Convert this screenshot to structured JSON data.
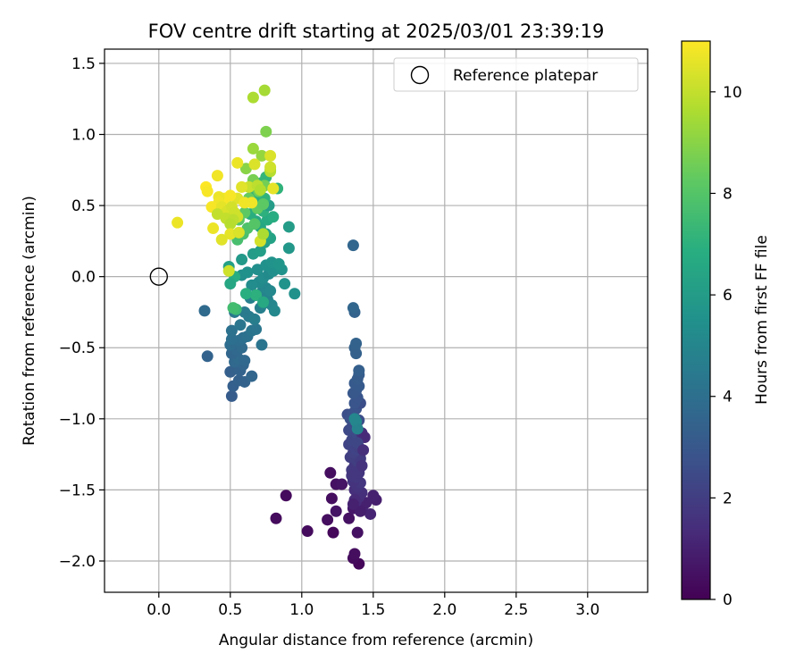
{
  "chart_data": {
    "type": "scatter",
    "title": "FOV centre drift starting at 2025/03/01 23:39:19",
    "xlabel": "Angular distance from reference (arcmin)",
    "ylabel": "Rotation from reference (arcmin)",
    "xlim": [
      -0.38,
      3.42
    ],
    "ylim": [
      -2.22,
      1.6
    ],
    "xticks": [
      0.0,
      0.5,
      1.0,
      1.5,
      2.0,
      2.5,
      3.0
    ],
    "xtick_labels": [
      "0.0",
      "0.5",
      "1.0",
      "1.5",
      "2.0",
      "2.5",
      "3.0"
    ],
    "yticks": [
      -2.0,
      -1.5,
      -1.0,
      -0.5,
      0.0,
      0.5,
      1.0,
      1.5
    ],
    "ytick_labels": [
      "−2.0",
      "−1.5",
      "−1.0",
      "−0.5",
      "0.0",
      "0.5",
      "1.0",
      "1.5"
    ],
    "grid": true,
    "legend": {
      "position": "top-right",
      "entries": [
        {
          "label": "Reference platepar",
          "marker": "open-circle"
        }
      ]
    },
    "reference_point": {
      "x": 0.0,
      "y": 0.0
    },
    "colorbar": {
      "label": "Hours from first FF file",
      "min": 0,
      "max": 11,
      "ticks": [
        0,
        2,
        4,
        6,
        8,
        10
      ],
      "colormap": "viridis"
    },
    "points": [
      {
        "x": 1.4,
        "y": -2.02,
        "t": 0.2
      },
      {
        "x": 1.36,
        "y": -1.98,
        "t": 0.3
      },
      {
        "x": 1.37,
        "y": -1.95,
        "t": 0.4
      },
      {
        "x": 1.39,
        "y": -1.8,
        "t": 0.5
      },
      {
        "x": 1.22,
        "y": -1.8,
        "t": 0.2
      },
      {
        "x": 1.04,
        "y": -1.79,
        "t": 0.3
      },
      {
        "x": 1.18,
        "y": -1.71,
        "t": 0.4
      },
      {
        "x": 0.82,
        "y": -1.7,
        "t": 0.3
      },
      {
        "x": 1.33,
        "y": -1.7,
        "t": 0.5
      },
      {
        "x": 1.24,
        "y": -1.65,
        "t": 0.6
      },
      {
        "x": 1.36,
        "y": -1.63,
        "t": 0.7
      },
      {
        "x": 1.21,
        "y": -1.56,
        "t": 0.4
      },
      {
        "x": 0.89,
        "y": -1.54,
        "t": 0.3
      },
      {
        "x": 1.24,
        "y": -1.46,
        "t": 0.5
      },
      {
        "x": 1.28,
        "y": -1.46,
        "t": 0.6
      },
      {
        "x": 1.2,
        "y": -1.38,
        "t": 0.4
      },
      {
        "x": 1.52,
        "y": -1.57,
        "t": 0.9
      },
      {
        "x": 1.5,
        "y": -1.54,
        "t": 1.0
      },
      {
        "x": 1.48,
        "y": -1.67,
        "t": 1.1
      },
      {
        "x": 1.43,
        "y": -1.61,
        "t": 1.2
      },
      {
        "x": 1.45,
        "y": -1.59,
        "t": 1.0
      },
      {
        "x": 1.41,
        "y": -1.65,
        "t": 0.9
      },
      {
        "x": 1.38,
        "y": -1.58,
        "t": 1.3
      },
      {
        "x": 1.4,
        "y": -1.55,
        "t": 1.4
      },
      {
        "x": 1.42,
        "y": -1.52,
        "t": 1.5
      },
      {
        "x": 1.37,
        "y": -1.5,
        "t": 1.5
      },
      {
        "x": 1.39,
        "y": -1.48,
        "t": 1.6
      },
      {
        "x": 1.41,
        "y": -1.45,
        "t": 1.7
      },
      {
        "x": 1.36,
        "y": -1.44,
        "t": 1.6
      },
      {
        "x": 1.38,
        "y": -1.41,
        "t": 1.8
      },
      {
        "x": 1.4,
        "y": -1.38,
        "t": 1.7
      },
      {
        "x": 1.35,
        "y": -1.36,
        "t": 1.9
      },
      {
        "x": 1.37,
        "y": -1.33,
        "t": 1.8
      },
      {
        "x": 1.39,
        "y": -1.3,
        "t": 2.0
      },
      {
        "x": 1.41,
        "y": -1.28,
        "t": 1.9
      },
      {
        "x": 1.34,
        "y": -1.27,
        "t": 2.0
      },
      {
        "x": 1.36,
        "y": -1.24,
        "t": 2.1
      },
      {
        "x": 1.38,
        "y": -1.22,
        "t": 2.2
      },
      {
        "x": 1.4,
        "y": -1.2,
        "t": 2.1
      },
      {
        "x": 1.33,
        "y": -1.18,
        "t": 2.2
      },
      {
        "x": 1.35,
        "y": -1.15,
        "t": 2.3
      },
      {
        "x": 1.37,
        "y": -1.13,
        "t": 2.3
      },
      {
        "x": 1.39,
        "y": -1.11,
        "t": 2.4
      },
      {
        "x": 1.42,
        "y": -1.1,
        "t": 1.4
      },
      {
        "x": 1.44,
        "y": -1.13,
        "t": 1.3
      },
      {
        "x": 1.33,
        "y": -1.08,
        "t": 2.4
      },
      {
        "x": 1.35,
        "y": -1.06,
        "t": 2.5
      },
      {
        "x": 1.38,
        "y": -1.04,
        "t": 2.5
      },
      {
        "x": 1.4,
        "y": -1.01,
        "t": 2.6
      },
      {
        "x": 1.32,
        "y": -0.97,
        "t": 2.6
      },
      {
        "x": 1.34,
        "y": -1.0,
        "t": 2.7
      },
      {
        "x": 1.36,
        "y": -0.96,
        "t": 2.7
      },
      {
        "x": 1.38,
        "y": -0.93,
        "t": 2.8
      },
      {
        "x": 1.41,
        "y": -0.89,
        "t": 2.6
      },
      {
        "x": 1.37,
        "y": -0.89,
        "t": 2.9
      },
      {
        "x": 1.39,
        "y": -0.85,
        "t": 2.9
      },
      {
        "x": 1.36,
        "y": -0.82,
        "t": 3.0
      },
      {
        "x": 1.38,
        "y": -0.8,
        "t": 3.0
      },
      {
        "x": 1.4,
        "y": -0.77,
        "t": 3.1
      },
      {
        "x": 1.37,
        "y": -0.75,
        "t": 3.1
      },
      {
        "x": 1.39,
        "y": -0.72,
        "t": 3.2
      },
      {
        "x": 1.4,
        "y": -0.69,
        "t": 3.2
      },
      {
        "x": 1.4,
        "y": -0.66,
        "t": 3.3
      },
      {
        "x": 1.38,
        "y": -0.54,
        "t": 3.4
      },
      {
        "x": 1.37,
        "y": -0.5,
        "t": 3.4
      },
      {
        "x": 1.38,
        "y": -0.47,
        "t": 3.5
      },
      {
        "x": 1.37,
        "y": -0.25,
        "t": 3.5
      },
      {
        "x": 1.36,
        "y": -0.22,
        "t": 3.6
      },
      {
        "x": 1.36,
        "y": 0.22,
        "t": 3.6
      },
      {
        "x": 1.37,
        "y": -1.57,
        "t": 1.3
      },
      {
        "x": 1.35,
        "y": -1.4,
        "t": 1.7
      },
      {
        "x": 1.42,
        "y": -1.33,
        "t": 1.6
      },
      {
        "x": 1.39,
        "y": -1.17,
        "t": 2.3
      },
      {
        "x": 1.43,
        "y": -1.22,
        "t": 1.5
      },
      {
        "x": 1.36,
        "y": -1.6,
        "t": 1.0
      },
      {
        "x": 1.38,
        "y": -1.02,
        "t": 5.2
      },
      {
        "x": 1.39,
        "y": -1.07,
        "t": 4.9
      },
      {
        "x": 1.37,
        "y": -1.0,
        "t": 5.0
      },
      {
        "x": 0.51,
        "y": -0.84,
        "t": 3.2
      },
      {
        "x": 0.52,
        "y": -0.77,
        "t": 3.3
      },
      {
        "x": 0.56,
        "y": -0.73,
        "t": 3.4
      },
      {
        "x": 0.6,
        "y": -0.74,
        "t": 3.5
      },
      {
        "x": 0.65,
        "y": -0.7,
        "t": 3.6
      },
      {
        "x": 0.5,
        "y": -0.67,
        "t": 3.3
      },
      {
        "x": 0.54,
        "y": -0.65,
        "t": 3.4
      },
      {
        "x": 0.57,
        "y": -0.66,
        "t": 3.5
      },
      {
        "x": 0.59,
        "y": -0.62,
        "t": 3.6
      },
      {
        "x": 0.53,
        "y": -0.6,
        "t": 3.7
      },
      {
        "x": 0.56,
        "y": -0.58,
        "t": 3.8
      },
      {
        "x": 0.6,
        "y": -0.59,
        "t": 3.7
      },
      {
        "x": 0.34,
        "y": -0.56,
        "t": 3.5
      },
      {
        "x": 0.51,
        "y": -0.54,
        "t": 3.6
      },
      {
        "x": 0.55,
        "y": -0.52,
        "t": 3.7
      },
      {
        "x": 0.58,
        "y": -0.5,
        "t": 3.8
      },
      {
        "x": 0.5,
        "y": -0.48,
        "t": 3.9
      },
      {
        "x": 0.53,
        "y": -0.46,
        "t": 3.8
      },
      {
        "x": 0.56,
        "y": -0.45,
        "t": 3.9
      },
      {
        "x": 0.59,
        "y": -0.43,
        "t": 4.0
      },
      {
        "x": 0.62,
        "y": -0.42,
        "t": 4.1
      },
      {
        "x": 0.51,
        "y": -0.44,
        "t": 4.0
      },
      {
        "x": 0.72,
        "y": -0.48,
        "t": 4.2
      },
      {
        "x": 0.65,
        "y": -0.38,
        "t": 4.2
      },
      {
        "x": 0.68,
        "y": -0.37,
        "t": 4.3
      },
      {
        "x": 0.51,
        "y": -0.38,
        "t": 4.1
      },
      {
        "x": 0.57,
        "y": -0.34,
        "t": 4.3
      },
      {
        "x": 0.32,
        "y": -0.24,
        "t": 3.8
      },
      {
        "x": 0.53,
        "y": -0.25,
        "t": 4.4
      },
      {
        "x": 0.6,
        "y": -0.25,
        "t": 4.5
      },
      {
        "x": 0.63,
        "y": -0.28,
        "t": 4.5
      },
      {
        "x": 0.67,
        "y": -0.3,
        "t": 4.6
      },
      {
        "x": 0.71,
        "y": -0.22,
        "t": 4.7
      },
      {
        "x": 0.73,
        "y": -0.19,
        "t": 4.8
      },
      {
        "x": 0.76,
        "y": -0.16,
        "t": 4.9
      },
      {
        "x": 0.79,
        "y": -0.2,
        "t": 5.0
      },
      {
        "x": 0.81,
        "y": -0.24,
        "t": 5.1
      },
      {
        "x": 0.64,
        "y": -0.15,
        "t": 4.7
      },
      {
        "x": 0.68,
        "y": -0.13,
        "t": 4.8
      },
      {
        "x": 0.72,
        "y": -0.11,
        "t": 4.9
      },
      {
        "x": 0.75,
        "y": -0.08,
        "t": 5.0
      },
      {
        "x": 0.78,
        "y": -0.1,
        "t": 5.1
      },
      {
        "x": 0.7,
        "y": -0.04,
        "t": 5.2
      },
      {
        "x": 0.73,
        "y": -0.01,
        "t": 5.3
      },
      {
        "x": 0.77,
        "y": 0.02,
        "t": 5.2
      },
      {
        "x": 0.8,
        "y": 0.04,
        "t": 5.4
      },
      {
        "x": 0.83,
        "y": 0.07,
        "t": 5.5
      },
      {
        "x": 0.86,
        "y": 0.05,
        "t": 5.6
      },
      {
        "x": 0.88,
        "y": -0.05,
        "t": 5.6
      },
      {
        "x": 0.95,
        "y": -0.12,
        "t": 5.5
      },
      {
        "x": 0.69,
        "y": 0.05,
        "t": 5.4
      },
      {
        "x": 0.75,
        "y": 0.08,
        "t": 5.5
      },
      {
        "x": 0.79,
        "y": 0.1,
        "t": 5.6
      },
      {
        "x": 0.84,
        "y": 0.09,
        "t": 5.7
      },
      {
        "x": 0.58,
        "y": 0.01,
        "t": 5.4
      },
      {
        "x": 0.62,
        "y": 0.03,
        "t": 5.5
      },
      {
        "x": 0.65,
        "y": -0.06,
        "t": 5.3
      },
      {
        "x": 0.58,
        "y": 0.12,
        "t": 5.9
      },
      {
        "x": 0.66,
        "y": 0.16,
        "t": 6.0
      },
      {
        "x": 0.71,
        "y": 0.18,
        "t": 6.1
      },
      {
        "x": 0.91,
        "y": 0.2,
        "t": 5.8
      },
      {
        "x": 0.74,
        "y": 0.24,
        "t": 6.2
      },
      {
        "x": 0.78,
        "y": 0.27,
        "t": 6.3
      },
      {
        "x": 0.75,
        "y": 0.3,
        "t": 6.4
      },
      {
        "x": 0.71,
        "y": 0.35,
        "t": 6.5
      },
      {
        "x": 0.91,
        "y": 0.35,
        "t": 6.0
      },
      {
        "x": 0.68,
        "y": 0.39,
        "t": 6.6
      },
      {
        "x": 0.76,
        "y": 0.4,
        "t": 6.7
      },
      {
        "x": 0.8,
        "y": 0.42,
        "t": 6.8
      },
      {
        "x": 0.64,
        "y": 0.44,
        "t": 6.9
      },
      {
        "x": 0.73,
        "y": 0.46,
        "t": 7.0
      },
      {
        "x": 0.77,
        "y": 0.5,
        "t": 6.0
      },
      {
        "x": 0.7,
        "y": 0.52,
        "t": 6.9
      },
      {
        "x": 0.74,
        "y": 0.55,
        "t": 7.1
      },
      {
        "x": 0.66,
        "y": 0.58,
        "t": 7.2
      },
      {
        "x": 0.83,
        "y": 0.62,
        "t": 7.1
      },
      {
        "x": 0.72,
        "y": 0.66,
        "t": 7.3
      },
      {
        "x": 0.75,
        "y": 0.7,
        "t": 7.2
      },
      {
        "x": 0.49,
        "y": 0.07,
        "t": 6.2
      },
      {
        "x": 0.53,
        "y": 0.0,
        "t": 6.8
      },
      {
        "x": 0.5,
        "y": -0.05,
        "t": 6.5
      },
      {
        "x": 0.68,
        "y": -0.13,
        "t": 7.0
      },
      {
        "x": 0.61,
        "y": -0.12,
        "t": 6.9
      },
      {
        "x": 0.54,
        "y": -0.23,
        "t": 7.4
      },
      {
        "x": 0.52,
        "y": -0.22,
        "t": 7.6
      },
      {
        "x": 0.73,
        "y": -0.18,
        "t": 6.6
      },
      {
        "x": 0.55,
        "y": 0.26,
        "t": 7.7
      },
      {
        "x": 0.59,
        "y": 0.3,
        "t": 7.8
      },
      {
        "x": 0.62,
        "y": 0.34,
        "t": 7.9
      },
      {
        "x": 0.67,
        "y": 0.37,
        "t": 8.0
      },
      {
        "x": 0.56,
        "y": 0.4,
        "t": 8.1
      },
      {
        "x": 0.6,
        "y": 0.45,
        "t": 8.2
      },
      {
        "x": 0.69,
        "y": 0.48,
        "t": 8.3
      },
      {
        "x": 0.73,
        "y": 0.51,
        "t": 8.2
      },
      {
        "x": 0.63,
        "y": 0.55,
        "t": 8.4
      },
      {
        "x": 0.7,
        "y": 0.6,
        "t": 8.5
      },
      {
        "x": 0.74,
        "y": 0.64,
        "t": 8.6
      },
      {
        "x": 0.66,
        "y": 0.68,
        "t": 8.7
      },
      {
        "x": 0.78,
        "y": 0.75,
        "t": 8.9
      },
      {
        "x": 0.61,
        "y": 0.76,
        "t": 9.0
      },
      {
        "x": 0.75,
        "y": 1.02,
        "t": 8.8
      },
      {
        "x": 0.66,
        "y": 0.9,
        "t": 9.3
      },
      {
        "x": 0.72,
        "y": 0.85,
        "t": 9.2
      },
      {
        "x": 0.66,
        "y": 1.26,
        "t": 9.6
      },
      {
        "x": 0.74,
        "y": 1.31,
        "t": 9.5
      },
      {
        "x": 0.78,
        "y": 0.74,
        "t": 9.8
      },
      {
        "x": 0.8,
        "y": 0.62,
        "t": 10.6
      },
      {
        "x": 0.78,
        "y": 0.77,
        "t": 10.2
      },
      {
        "x": 0.78,
        "y": 0.85,
        "t": 10.4
      },
      {
        "x": 0.67,
        "y": 0.79,
        "t": 10.4
      },
      {
        "x": 0.55,
        "y": 0.8,
        "t": 10.7
      },
      {
        "x": 0.63,
        "y": 0.63,
        "t": 10.1
      },
      {
        "x": 0.69,
        "y": 0.64,
        "t": 9.9
      },
      {
        "x": 0.71,
        "y": 0.61,
        "t": 9.7
      },
      {
        "x": 0.58,
        "y": 0.63,
        "t": 10.5
      },
      {
        "x": 0.55,
        "y": 0.55,
        "t": 10.5
      },
      {
        "x": 0.6,
        "y": 0.52,
        "t": 10.8
      },
      {
        "x": 0.65,
        "y": 0.52,
        "t": 10.8
      },
      {
        "x": 0.5,
        "y": 0.57,
        "t": 10.9
      },
      {
        "x": 0.46,
        "y": 0.55,
        "t": 10.9
      },
      {
        "x": 0.42,
        "y": 0.56,
        "t": 10.7
      },
      {
        "x": 0.42,
        "y": 0.52,
        "t": 10.8
      },
      {
        "x": 0.37,
        "y": 0.49,
        "t": 10.9
      },
      {
        "x": 0.33,
        "y": 0.63,
        "t": 11.0
      },
      {
        "x": 0.34,
        "y": 0.6,
        "t": 10.9
      },
      {
        "x": 0.41,
        "y": 0.71,
        "t": 10.8
      },
      {
        "x": 0.44,
        "y": 0.49,
        "t": 10.6
      },
      {
        "x": 0.47,
        "y": 0.45,
        "t": 10.4
      },
      {
        "x": 0.49,
        "y": 0.47,
        "t": 10.4
      },
      {
        "x": 0.51,
        "y": 0.49,
        "t": 10.3
      },
      {
        "x": 0.53,
        "y": 0.45,
        "t": 10.2
      },
      {
        "x": 0.55,
        "y": 0.42,
        "t": 10.2
      },
      {
        "x": 0.47,
        "y": 0.41,
        "t": 10.0
      },
      {
        "x": 0.52,
        "y": 0.4,
        "t": 9.9
      },
      {
        "x": 0.5,
        "y": 0.37,
        "t": 9.8
      },
      {
        "x": 0.41,
        "y": 0.44,
        "t": 10.0
      },
      {
        "x": 0.13,
        "y": 0.38,
        "t": 10.7
      },
      {
        "x": 0.38,
        "y": 0.34,
        "t": 10.7
      },
      {
        "x": 0.5,
        "y": 0.3,
        "t": 10.6
      },
      {
        "x": 0.56,
        "y": 0.31,
        "t": 10.4
      },
      {
        "x": 0.44,
        "y": 0.26,
        "t": 10.5
      },
      {
        "x": 0.71,
        "y": 0.25,
        "t": 10.3
      },
      {
        "x": 0.73,
        "y": 0.3,
        "t": 9.6
      },
      {
        "x": 0.49,
        "y": 0.04,
        "t": 10.2
      }
    ]
  }
}
